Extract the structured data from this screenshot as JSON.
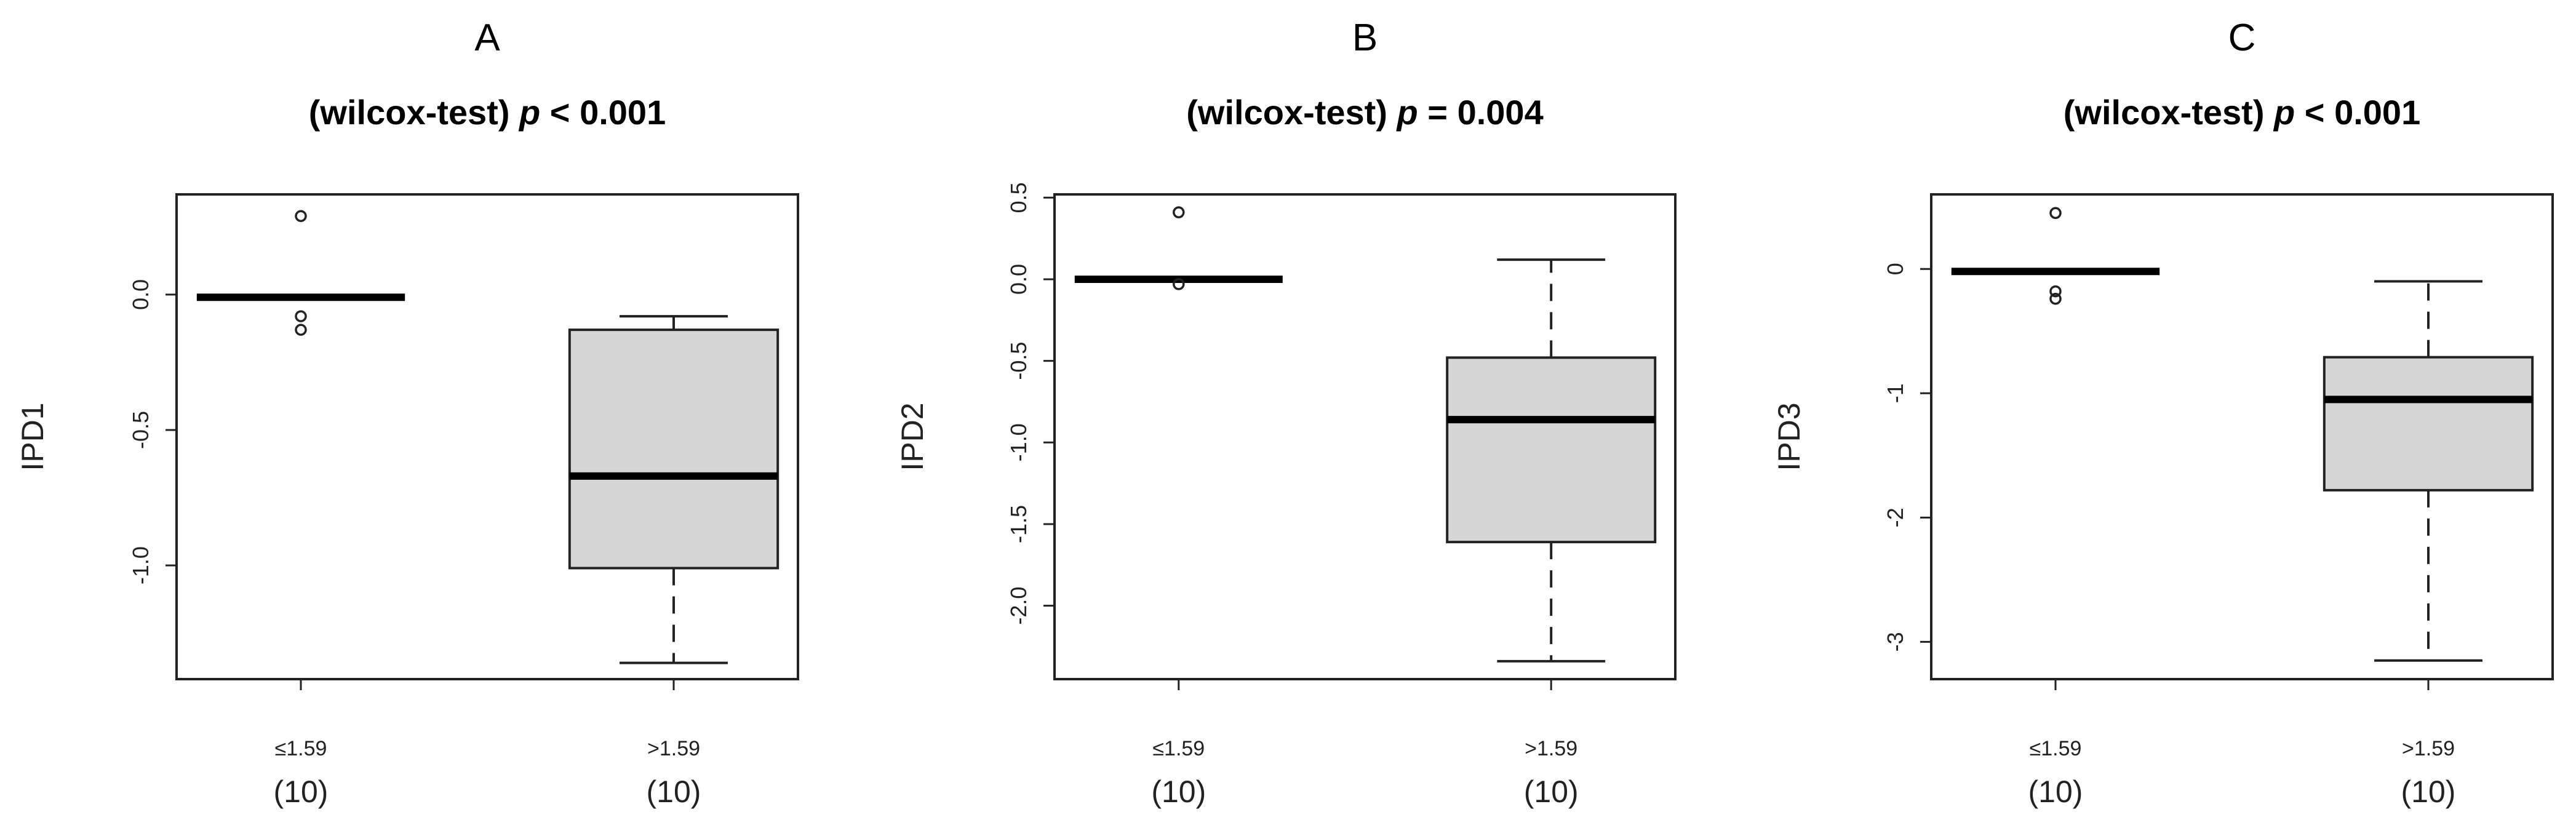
{
  "chart_data": [
    {
      "type": "box",
      "panel_label": "A",
      "title_prefix": "(wilcox-test)",
      "p_symbol": "p",
      "p_text": " < 0.001",
      "ylabel": "IPD1",
      "ylim": [
        -1.42,
        0.37
      ],
      "yticks": [
        -1.0,
        -0.5,
        0.0
      ],
      "ytick_labels": [
        "-1.0",
        "-0.5",
        "0.0"
      ],
      "categories": [
        "≤1.59",
        ">1.59"
      ],
      "n_labels": [
        "(10)",
        "(10)"
      ],
      "boxes": [
        {
          "whisker_low": -0.01,
          "q1": -0.01,
          "median": -0.01,
          "q3": -0.01,
          "whisker_high": -0.01,
          "outliers": [
            0.29,
            -0.08,
            -0.13
          ]
        },
        {
          "whisker_low": -1.36,
          "q1": -1.01,
          "median": -0.67,
          "q3": -0.13,
          "whisker_high": -0.08,
          "outliers": []
        }
      ]
    },
    {
      "type": "box",
      "panel_label": "B",
      "title_prefix": "(wilcox-test)",
      "p_symbol": "p",
      "p_text": " = 0.004",
      "ylabel": "IPD2",
      "ylim": [
        -2.45,
        0.52
      ],
      "yticks": [
        -2.0,
        -1.5,
        -1.0,
        -0.5,
        0.0,
        0.5
      ],
      "ytick_labels": [
        "-2.0",
        "-1.5",
        "-1.0",
        "-0.5",
        "0.0",
        "0.5"
      ],
      "categories": [
        "≤1.59",
        ">1.59"
      ],
      "n_labels": [
        "(10)",
        "(10)"
      ],
      "boxes": [
        {
          "whisker_low": 0.0,
          "q1": 0.0,
          "median": 0.0,
          "q3": 0.0,
          "whisker_high": 0.0,
          "outliers": [
            0.41,
            -0.03
          ]
        },
        {
          "whisker_low": -2.34,
          "q1": -1.61,
          "median": -0.86,
          "q3": -0.48,
          "whisker_high": 0.12,
          "outliers": []
        }
      ]
    },
    {
      "type": "box",
      "panel_label": "C",
      "title_prefix": "(wilcox-test)",
      "p_symbol": "p",
      "p_text": " < 0.001",
      "ylabel": "IPD3",
      "ylim": [
        -3.3,
        0.6
      ],
      "yticks": [
        -3,
        -2,
        -1,
        0
      ],
      "ytick_labels": [
        "-3",
        "-2",
        "-1",
        "0"
      ],
      "categories": [
        "≤1.59",
        ">1.59"
      ],
      "n_labels": [
        "(10)",
        "(10)"
      ],
      "boxes": [
        {
          "whisker_low": -0.02,
          "q1": -0.02,
          "median": -0.02,
          "q3": -0.02,
          "whisker_high": -0.02,
          "outliers": [
            0.45,
            -0.18,
            -0.24
          ]
        },
        {
          "whisker_low": -3.15,
          "q1": -1.78,
          "median": -1.05,
          "q3": -0.71,
          "whisker_high": -0.1,
          "outliers": []
        }
      ]
    }
  ]
}
